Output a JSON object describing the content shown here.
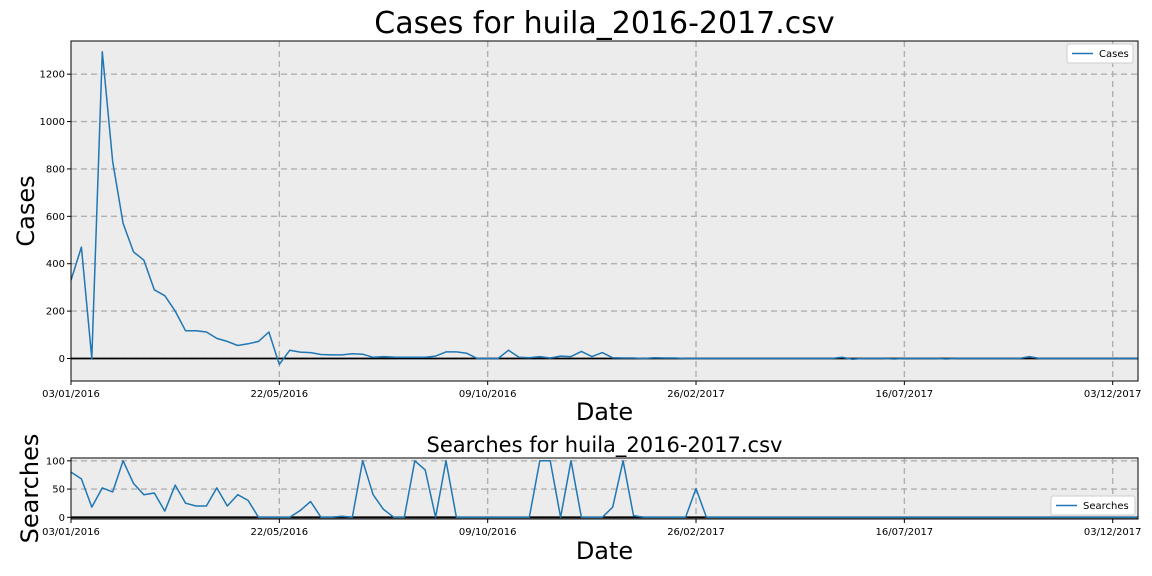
{
  "chart_data": [
    {
      "type": "line",
      "title": "Cases for huila_2016-2017.csv",
      "xlabel": "Date",
      "ylabel": "Cases",
      "x_start": "03/01/2016",
      "x_step_days": 7,
      "xlim": [
        "03/01/2016",
        "20/12/2017"
      ],
      "ylim": [
        -95,
        1340
      ],
      "yticks": [
        0,
        200,
        400,
        600,
        800,
        1000,
        1200
      ],
      "xticks": [
        "03/01/2016",
        "22/05/2016",
        "09/10/2016",
        "26/02/2017",
        "16/07/2017",
        "03/12/2017"
      ],
      "grid": true,
      "zero_line": true,
      "legend": "top-right",
      "series": [
        {
          "name": "Cases",
          "color": "#1f77b4",
          "values": [
            330,
            470,
            0,
            1295,
            830,
            570,
            450,
            415,
            290,
            265,
            200,
            117,
            117,
            112,
            85,
            72,
            55,
            62,
            72,
            112,
            -25,
            35,
            27,
            25,
            17,
            15,
            15,
            20,
            18,
            5,
            8,
            6,
            5,
            5,
            5,
            10,
            28,
            28,
            22,
            0,
            0,
            0,
            35,
            5,
            3,
            8,
            2,
            10,
            8,
            30,
            8,
            25,
            3,
            2,
            2,
            0,
            3,
            2,
            2,
            0,
            0,
            0,
            0,
            0,
            0,
            0,
            0,
            0,
            0,
            0,
            0,
            0,
            0,
            0,
            5,
            -3,
            0,
            0,
            0,
            -2,
            0,
            0,
            0,
            0,
            -2,
            0,
            0,
            0,
            0,
            0,
            0,
            0,
            8,
            0,
            0,
            0,
            0,
            0,
            0,
            0,
            0,
            0,
            0,
            0,
            0,
            0,
            0
          ]
        }
      ]
    },
    {
      "type": "line",
      "title": "Searches for huila_2016-2017.csv",
      "xlabel": "Date",
      "ylabel": "Searches",
      "x_start": "03/01/2016",
      "x_step_days": 7,
      "xlim": [
        "03/01/2016",
        "20/12/2017"
      ],
      "ylim": [
        -3,
        105
      ],
      "yticks": [
        0,
        50,
        100
      ],
      "xticks": [
        "03/01/2016",
        "22/05/2016",
        "09/10/2016",
        "26/02/2017",
        "16/07/2017",
        "03/12/2017"
      ],
      "grid": true,
      "zero_line": true,
      "legend": "lower-right",
      "series": [
        {
          "name": "Searches",
          "color": "#1f77b4",
          "values": [
            80,
            68,
            18,
            52,
            45,
            100,
            60,
            40,
            43,
            11,
            57,
            25,
            20,
            20,
            52,
            20,
            40,
            30,
            0,
            0,
            0,
            0,
            12,
            28,
            0,
            0,
            2,
            0,
            100,
            40,
            14,
            0,
            0,
            100,
            84,
            0,
            100,
            0,
            0,
            0,
            0,
            0,
            0,
            0,
            0,
            100,
            100,
            0,
            100,
            0,
            0,
            0,
            18,
            100,
            3,
            0,
            0,
            0,
            0,
            0,
            51,
            0,
            0,
            0,
            0,
            0,
            0,
            0,
            0,
            0,
            0,
            0,
            0,
            0,
            0,
            0,
            0,
            0,
            0,
            0,
            0,
            0,
            0,
            0,
            0,
            0,
            0,
            0,
            0,
            0,
            0,
            0,
            0,
            0,
            0,
            0,
            0,
            0,
            0,
            0,
            0,
            0,
            0,
            0,
            0,
            0,
            0
          ]
        }
      ]
    }
  ]
}
